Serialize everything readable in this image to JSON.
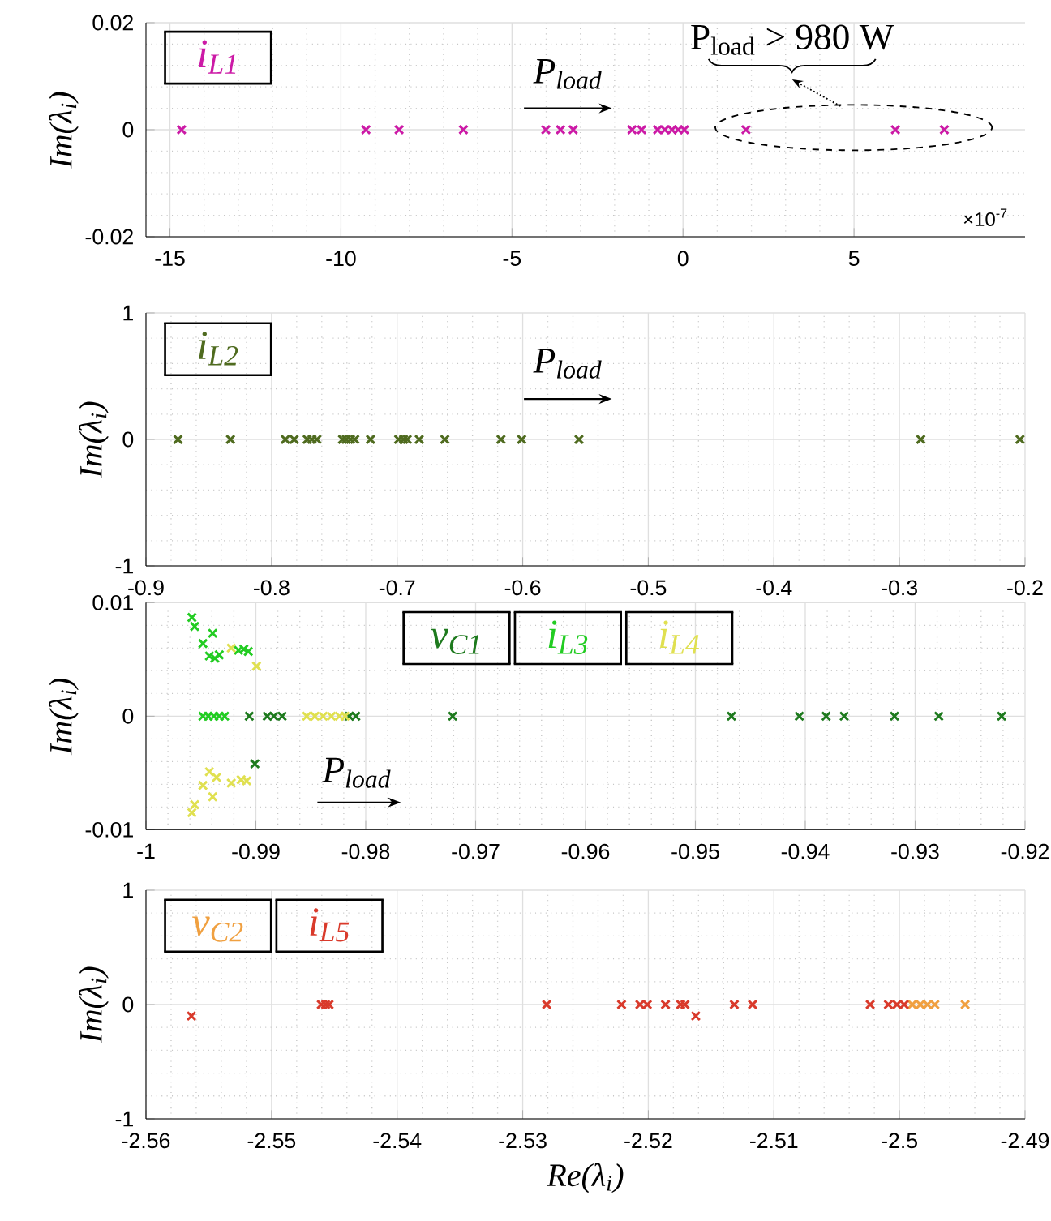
{
  "chart_data": [
    {
      "type": "scatter",
      "ylabel": "Im(λ$_{i}$)",
      "xlim": [
        -15.7,
        10
      ],
      "ylim": [
        -0.02,
        0.02
      ],
      "xticks": [
        -15,
        -10,
        -5,
        0,
        5
      ],
      "yticks": [
        -0.02,
        0,
        0.02
      ],
      "grid": true,
      "legend": "top left",
      "marker": "cross",
      "annotations": [
        "P$_{load}$",
        "P$_{load}$ > 980 W",
        "×10$^{-7}$"
      ],
      "series": [
        {
          "name": "i$_{L1}$",
          "color": "#cc1aa6",
          "x": [
            -14.66,
            -9.27,
            -8.3,
            -6.42,
            -4.01,
            -3.58,
            -3.21,
            -1.49,
            -1.21,
            -0.74,
            -0.53,
            -0.32,
            -0.14,
            0.04,
            1.84,
            6.21,
            7.64
          ],
          "values": [
            0,
            0,
            0,
            0,
            0,
            0,
            0,
            0,
            0,
            0,
            0,
            0,
            0,
            0,
            0,
            0,
            0
          ]
        }
      ]
    },
    {
      "type": "scatter",
      "ylabel": "Im(λ$_{i}$)",
      "xlim": [
        -0.9,
        -0.2
      ],
      "ylim": [
        -1,
        1
      ],
      "xticks": [
        -0.9,
        -0.8,
        -0.7,
        -0.6,
        -0.5,
        -0.4,
        -0.3,
        -0.2
      ],
      "yticks": [
        -1,
        0,
        1
      ],
      "grid": true,
      "legend": "top left",
      "marker": "cross",
      "annotations": [
        "P$_{load}$"
      ],
      "series": [
        {
          "name": "i$_{L2}$",
          "color": "#4f6b1f",
          "x": [
            -0.8745,
            -0.8327,
            -0.789,
            -0.782,
            -0.7716,
            -0.7678,
            -0.7639,
            -0.7435,
            -0.7406,
            -0.7371,
            -0.7337,
            -0.7212,
            -0.6988,
            -0.6949,
            -0.692,
            -0.6824,
            -0.662,
            -0.6173,
            -0.6008,
            -0.5552,
            -0.283,
            -0.204
          ],
          "values": [
            0,
            0,
            0,
            0,
            0,
            0,
            0,
            0,
            0,
            0,
            0,
            0,
            0,
            0,
            0,
            0,
            0,
            0,
            0,
            0,
            0,
            0
          ]
        }
      ]
    },
    {
      "type": "scatter",
      "ylabel": "Im(λ$_{i}$)",
      "xlim": [
        -1,
        -0.92
      ],
      "ylim": [
        -0.01,
        0.01
      ],
      "xticks": [
        -1,
        -0.99,
        -0.98,
        -0.97,
        -0.96,
        -0.95,
        -0.94,
        -0.93,
        -0.92
      ],
      "yticks": [
        -0.01,
        0,
        0.01
      ],
      "grid": true,
      "legend": "top",
      "marker": "cross",
      "annotations": [
        "P$_{load}$"
      ],
      "series": [
        {
          "name": "v$_{C1}$",
          "color": "#1e7a1e",
          "x": [
            -0.9906,
            -0.98896,
            -0.98836,
            -0.98761,
            -0.98149,
            -0.9809,
            -0.97209,
            -0.94672,
            -0.94054,
            -0.9381,
            -0.93646,
            -0.93188,
            -0.92785,
            -0.92213,
            -0.99009
          ],
          "values": [
            0,
            0,
            0,
            0,
            0,
            0,
            0,
            0,
            0,
            0,
            0,
            0,
            0,
            0,
            -0.0042
          ]
        },
        {
          "name": "i$_{L3}$",
          "color": "#22cc22",
          "x": [
            -0.99482,
            -0.99433,
            -0.99382,
            -0.99333,
            -0.99284,
            -0.99582,
            -0.99557,
            -0.99482,
            -0.99393,
            -0.99423,
            -0.99373,
            -0.99333,
            -0.99158,
            -0.99109,
            -0.99069
          ],
          "values": [
            0,
            0,
            0,
            0,
            0,
            0.0087,
            0.0079,
            0.0064,
            0.0073,
            0.0053,
            0.0051,
            0.0054,
            0.0058,
            0.0059,
            0.0057
          ]
        },
        {
          "name": "i$_{L4}$",
          "color": "#e0e050",
          "x": [
            -0.99224,
            -0.98994,
            -0.99582,
            -0.99557,
            -0.99482,
            -0.99393,
            -0.99423,
            -0.99358,
            -0.99224,
            -0.99134,
            -0.99084,
            -0.98537,
            -0.98463,
            -0.98388,
            -0.98313,
            -0.98239,
            -0.98188
          ],
          "values": [
            0.006,
            0.0044,
            -0.0085,
            -0.0078,
            -0.0061,
            -0.0071,
            -0.0049,
            -0.0054,
            -0.0059,
            -0.0056,
            -0.0057,
            0,
            0,
            0,
            0,
            0,
            0
          ]
        }
      ]
    },
    {
      "type": "scatter",
      "xlabel": "Re(λ$_{i}$)",
      "ylabel": "Im(λ$_{i}$)",
      "xlim": [
        -2.56,
        -2.49
      ],
      "ylim": [
        -1,
        1
      ],
      "xticks": [
        -2.56,
        -2.55,
        -2.54,
        -2.53,
        -2.52,
        -2.51,
        -2.5,
        -2.49
      ],
      "yticks": [
        -1,
        0,
        1
      ],
      "grid": true,
      "legend": "top left",
      "marker": "cross",
      "series": [
        {
          "name": "v$_{C2}$",
          "color": "#f0a040",
          "x": [
            -2.49898,
            -2.49834,
            -2.49777,
            -2.49718,
            -2.49477
          ],
          "values": [
            0,
            0,
            0,
            0,
            0
          ]
        },
        {
          "name": "i$_{L5}$",
          "color": "#d93a2b",
          "x": [
            -2.55638,
            -2.54604,
            -2.5457,
            -2.54542,
            -2.52809,
            -2.52213,
            -2.52067,
            -2.52008,
            -2.51863,
            -2.51742,
            -2.51708,
            -2.51622,
            -2.51315,
            -2.5117,
            -2.50233,
            -2.50088,
            -2.5002,
            -2.49962
          ],
          "values": [
            -0.1,
            0,
            0,
            0,
            0,
            0,
            0,
            0,
            0,
            0,
            0,
            -0.1,
            0,
            0,
            0,
            0,
            0,
            0
          ]
        }
      ]
    }
  ]
}
